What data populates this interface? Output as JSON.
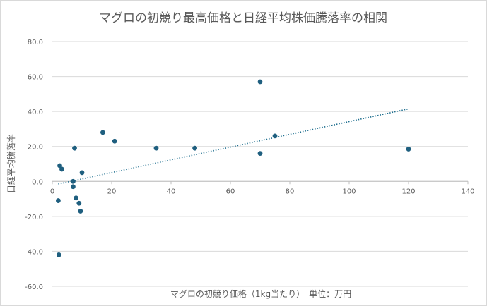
{
  "chart_data": {
    "type": "scatter",
    "title": "マグロの初競り最高価格と日経平均株価騰落率の相関",
    "xlabel": "マグロの初競り価格（1kg当たり）　単位：万円",
    "ylabel": "日経平均騰落率",
    "xlim": [
      0,
      140
    ],
    "ylim": [
      -60,
      80
    ],
    "x_ticks": [
      "0",
      "20",
      "40",
      "60",
      "80",
      "100",
      "120",
      "140"
    ],
    "y_ticks": [
      "80.0",
      "60.0",
      "40.0",
      "20.0",
      "0.0",
      "-20.0",
      "-40.0",
      "-60.0"
    ],
    "grid": "horizontal",
    "marker_color": "#1f5f7f",
    "trendline": {
      "style": "dotted",
      "color": "#1f6f8f",
      "x": [
        2,
        120
      ],
      "y": [
        -1.5,
        41.5
      ]
    },
    "points": [
      {
        "x": 70,
        "y": 57
      },
      {
        "x": 17,
        "y": 28
      },
      {
        "x": 75,
        "y": 26
      },
      {
        "x": 21,
        "y": 23
      },
      {
        "x": 35,
        "y": 19
      },
      {
        "x": 48,
        "y": 19
      },
      {
        "x": 7.5,
        "y": 19
      },
      {
        "x": 120,
        "y": 18.5
      },
      {
        "x": 70,
        "y": 16
      },
      {
        "x": 2.5,
        "y": 9
      },
      {
        "x": 3.2,
        "y": 7
      },
      {
        "x": 10,
        "y": 5
      },
      {
        "x": 7,
        "y": 0
      },
      {
        "x": 7,
        "y": -3
      },
      {
        "x": 8,
        "y": -9.5
      },
      {
        "x": 2,
        "y": -11
      },
      {
        "x": 9,
        "y": -12.5
      },
      {
        "x": 9.5,
        "y": -17
      },
      {
        "x": 2.2,
        "y": -42
      }
    ]
  }
}
